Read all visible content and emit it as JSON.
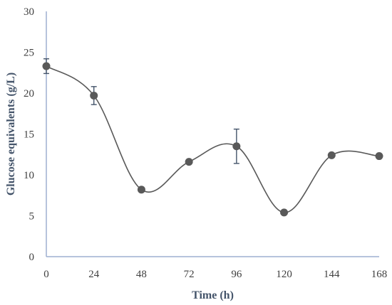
{
  "chart_data": {
    "type": "line",
    "title": "",
    "xlabel": "Time (h)",
    "ylabel": "Glucose equivalents (g/L)",
    "x": [
      0,
      24,
      48,
      72,
      96,
      120,
      144,
      168
    ],
    "xticks": [
      "0",
      "24",
      "48",
      "72",
      "96",
      "120",
      "144",
      "168"
    ],
    "xlim": [
      0,
      168
    ],
    "ylim": [
      0,
      30
    ],
    "yticks": [
      "0",
      "5",
      "10",
      "15",
      "20",
      "25",
      "30"
    ],
    "series": [
      {
        "values": [
          23.3,
          19.7,
          8.2,
          11.6,
          13.5,
          5.4,
          12.4,
          12.3
        ],
        "error": [
          0.9,
          1.1,
          0,
          0,
          2.1,
          0,
          0,
          0
        ],
        "line_color": "#595959",
        "marker_color": "#595959",
        "smoothed": true
      }
    ],
    "grid": false,
    "legend": "none",
    "axis_color": "#9dafd1"
  }
}
